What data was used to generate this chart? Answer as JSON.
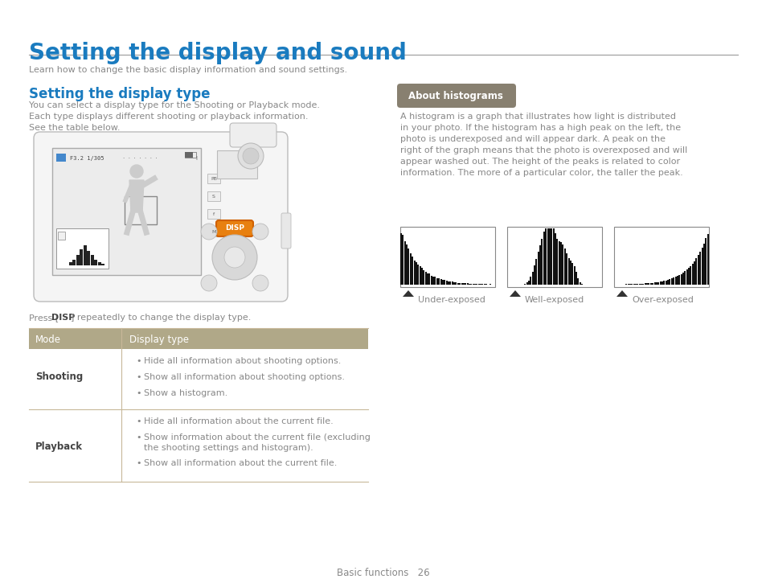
{
  "title": "Setting the display and sound",
  "subtitle": "Learn how to change the basic display information and sound settings.",
  "section1_title": "Setting the display type",
  "section1_body": "You can select a display type for the Shooting or Playback mode.\nEach type displays different shooting or playback information.\nSee the table below.",
  "press_text": "Press [DISP] repeatedly to change the display type.",
  "table_header": [
    "Mode",
    "Display type"
  ],
  "table_rows": [
    {
      "mode": "Shooting",
      "items": [
        "Hide all information about shooting options.",
        "Show all information about shooting options.",
        "Show a histogram."
      ]
    },
    {
      "mode": "Playback",
      "items": [
        "Hide all information about the current file.",
        "Show information about the current file (excluding\nthe shooting settings and histogram).",
        "Show all information about the current file."
      ]
    }
  ],
  "section2_title": "About histograms",
  "section2_body": "A histogram is a graph that illustrates how light is distributed\nin your photo. If the histogram has a high peak on the left, the\nphoto is underexposed and will appear dark. A peak on the\nright of the graph means that the photo is overexposed and will\nappear washed out. The height of the peaks is related to color\ninformation. The more of a particular color, the taller the peak.",
  "histogram_labels": [
    "Under-exposed",
    "Well-exposed",
    "Over-exposed"
  ],
  "footer": "Basic functions   26",
  "title_color": "#1a7bbf",
  "section_title_color": "#1a7bbf",
  "section2_title_bg": "#888070",
  "section2_title_text_color": "#ffffff",
  "table_header_bg": "#b0a888",
  "table_header_text": "#ffffff",
  "table_border_color": "#c8b89a",
  "body_text_color": "#888888",
  "bold_text_color": "#444444",
  "mode_text_color": "#444444",
  "background_color": "#ffffff",
  "hr_color": "#555555",
  "cam_body_color": "#f5f5f5",
  "cam_border_color": "#bbbbbb",
  "screen_color": "#e8e8e8",
  "person_color": "#cccccc"
}
